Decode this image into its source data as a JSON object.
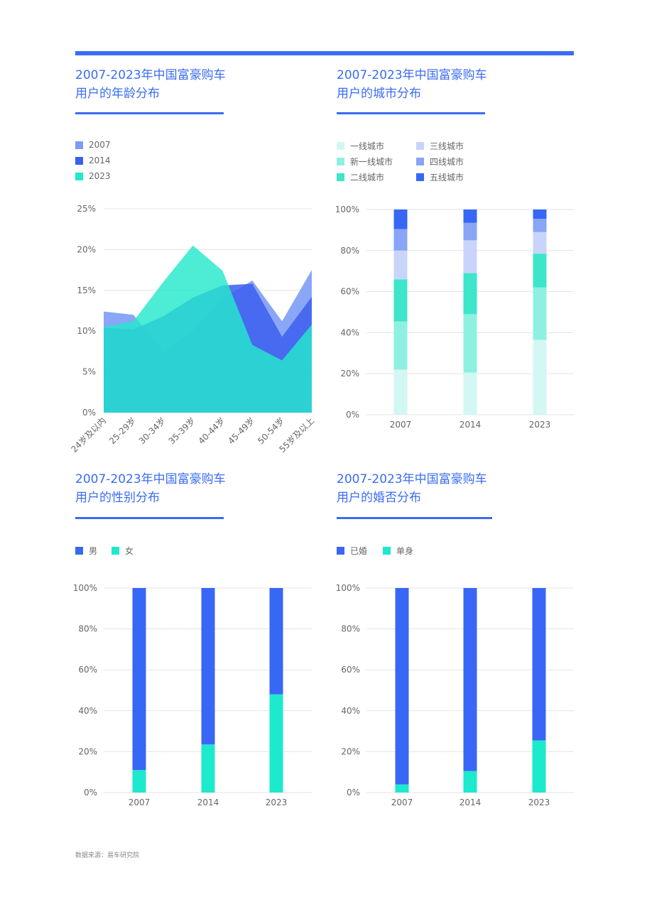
{
  "titles": {
    "age": [
      "2007-2023年中国富豪购车",
      "用户的年龄分布"
    ],
    "city": [
      "2007-2023年中国富豪购车",
      "用户的城市分布"
    ],
    "gender": [
      "2007-2023年中国富豪购车",
      "用户的性别分布"
    ],
    "marriage": [
      "2007-2023年中国富豪购车",
      "用户的婚否分布"
    ]
  },
  "source": "数据来源：易车研究院",
  "colors": {
    "accent": "#3a6cf4",
    "s2007": "#7d9cf5",
    "s2014": "#3b5ff0",
    "s2023": "#24e8cc",
    "male": "#3867f5",
    "female": "#1de9cd",
    "married": "#3867f5",
    "single": "#1de9cd",
    "tier1": "#d3f7f2",
    "newtier1": "#8ef0e0",
    "tier2": "#3de6c9",
    "tier3": "#c9d4fb",
    "tier4": "#88a5f6",
    "tier5": "#3867f5"
  },
  "chart_data": [
    {
      "id": "age",
      "type": "area",
      "categories": [
        "24岁及以内",
        "25-29岁",
        "30-34岁",
        "35-39岁",
        "40-44岁",
        "45-49岁",
        "50-54岁",
        "55岁及以上"
      ],
      "series": [
        {
          "name": "2007",
          "values": [
            12.4,
            12.0,
            7.5,
            10.0,
            14.0,
            16.2,
            11.2,
            17.5
          ]
        },
        {
          "name": "2014",
          "values": [
            10.4,
            10.2,
            11.8,
            14.1,
            15.6,
            15.8,
            9.3,
            14.2
          ]
        },
        {
          "name": "2023",
          "values": [
            10.5,
            11.2,
            16.0,
            20.5,
            17.4,
            8.3,
            6.4,
            10.8
          ]
        }
      ],
      "ylim": [
        0,
        25
      ],
      "yticks": [
        "0%",
        "5%",
        "10%",
        "15%",
        "20%",
        "25%"
      ],
      "legend_position": "top-left",
      "grid": true
    },
    {
      "id": "city",
      "type": "bar",
      "stacked": true,
      "categories": [
        "2007",
        "2014",
        "2023"
      ],
      "series": [
        {
          "name": "一线城市",
          "values": [
            22.0,
            20.5,
            36.5
          ]
        },
        {
          "name": "新一线城市",
          "values": [
            23.5,
            28.5,
            25.5
          ]
        },
        {
          "name": "二线城市",
          "values": [
            20.5,
            20.0,
            16.5
          ]
        },
        {
          "name": "三线城市",
          "values": [
            14.0,
            16.0,
            10.5
          ]
        },
        {
          "name": "四线城市",
          "values": [
            10.5,
            8.5,
            6.5
          ]
        },
        {
          "name": "五线城市",
          "values": [
            9.5,
            6.5,
            4.5
          ]
        }
      ],
      "ylim": [
        0,
        100
      ],
      "yticks": [
        "0%",
        "20%",
        "40%",
        "60%",
        "80%",
        "100%"
      ],
      "legend_position": "top-left",
      "grid": true
    },
    {
      "id": "gender",
      "type": "bar",
      "stacked": true,
      "categories": [
        "2007",
        "2014",
        "2023"
      ],
      "series": [
        {
          "name": "女",
          "values": [
            11.0,
            23.5,
            48.0
          ]
        },
        {
          "name": "男",
          "values": [
            89.0,
            76.5,
            52.0
          ]
        }
      ],
      "ylim": [
        0,
        100
      ],
      "yticks": [
        "0%",
        "20%",
        "40%",
        "60%",
        "80%",
        "100%"
      ],
      "legend_position": "top-left",
      "grid": true
    },
    {
      "id": "marriage",
      "type": "bar",
      "stacked": true,
      "categories": [
        "2007",
        "2014",
        "2023"
      ],
      "series": [
        {
          "name": "单身",
          "values": [
            4.0,
            10.5,
            25.5
          ]
        },
        {
          "name": "已婚",
          "values": [
            96.0,
            89.5,
            74.5
          ]
        }
      ],
      "ylim": [
        0,
        100
      ],
      "yticks": [
        "0%",
        "20%",
        "40%",
        "60%",
        "80%",
        "100%"
      ],
      "legend_position": "top-left",
      "grid": true
    }
  ]
}
